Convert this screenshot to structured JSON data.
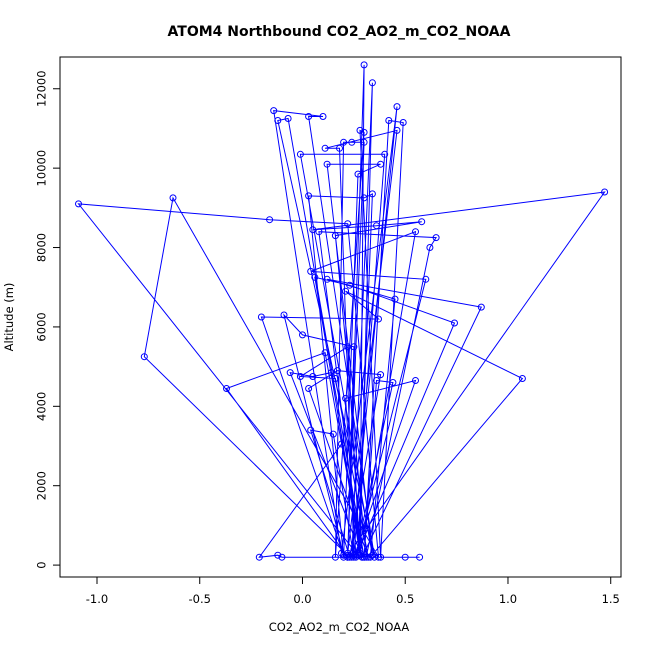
{
  "chart_data": {
    "type": "line",
    "title": "ATOM4 Northbound CO2_AO2_m_CO2_NOAA",
    "xlabel": "CO2_AO2_m_CO2_NOAA",
    "ylabel": "Altitude (m)",
    "xlim": [
      -1.18,
      1.55
    ],
    "ylim": [
      -300,
      12800
    ],
    "x_ticks": [
      -1.0,
      -0.5,
      0.0,
      0.5,
      1.0,
      1.5
    ],
    "x_tick_labels": [
      "-1.0",
      "-0.5",
      "0.0",
      "0.5",
      "1.0",
      "1.5"
    ],
    "y_ticks": [
      0,
      2000,
      4000,
      6000,
      8000,
      10000,
      12000
    ],
    "y_tick_labels": [
      "0",
      "2000",
      "4000",
      "6000",
      "8000",
      "10000",
      "12000"
    ],
    "grid": false,
    "legend": "none",
    "marker": "open-circle",
    "color": "#0000ff",
    "series": [
      {
        "points": [
          [
            0.22,
            200
          ],
          [
            0.3,
            12600
          ],
          [
            0.28,
            300
          ],
          [
            0.34,
            12150
          ],
          [
            0.24,
            200
          ],
          [
            0.46,
            11550
          ],
          [
            0.19,
            300
          ],
          [
            -0.14,
            11450
          ],
          [
            0.1,
            11300
          ],
          [
            0.03,
            11300
          ],
          [
            0.35,
            200
          ],
          [
            -0.12,
            11200
          ],
          [
            -0.07,
            11250
          ],
          [
            0.3,
            200
          ],
          [
            0.42,
            11200
          ],
          [
            0.49,
            11150
          ],
          [
            0.38,
            200
          ],
          [
            0.28,
            10950
          ],
          [
            0.3,
            10900
          ],
          [
            0.16,
            200
          ],
          [
            0.2,
            10650
          ],
          [
            0.24,
            10650
          ],
          [
            0.3,
            10650
          ],
          [
            0.22,
            300
          ],
          [
            0.46,
            10950
          ],
          [
            0.11,
            10500
          ],
          [
            0.18,
            10500
          ],
          [
            0.25,
            250
          ],
          [
            0.4,
            10350
          ],
          [
            -0.01,
            10350
          ],
          [
            0.34,
            250
          ],
          [
            0.12,
            10100
          ],
          [
            0.38,
            10100
          ],
          [
            0.27,
            9850
          ],
          [
            0.2,
            200
          ],
          [
            0.03,
            9300
          ],
          [
            0.3,
            9250
          ],
          [
            0.34,
            9350
          ],
          [
            0.27,
            250
          ],
          [
            -1.09,
            9100
          ],
          [
            -0.16,
            8700
          ],
          [
            0.22,
            8600
          ],
          [
            0.37,
            200
          ],
          [
            -0.63,
            9250
          ],
          [
            -0.77,
            5250
          ],
          [
            0.22,
            250
          ],
          [
            1.47,
            9400
          ],
          [
            0.05,
            8450
          ],
          [
            0.36,
            8550
          ],
          [
            0.58,
            8650
          ],
          [
            0.16,
            8300
          ],
          [
            0.31,
            200
          ],
          [
            0.62,
            8000
          ],
          [
            0.65,
            8250
          ],
          [
            0.08,
            8400
          ],
          [
            0.28,
            250
          ],
          [
            0.55,
            8400
          ],
          [
            0.04,
            7400
          ],
          [
            0.6,
            7200
          ],
          [
            0.26,
            200
          ],
          [
            0.74,
            6100
          ],
          [
            0.23,
            7050
          ],
          [
            0.06,
            7250
          ],
          [
            0.29,
            200
          ],
          [
            0.87,
            6500
          ],
          [
            0.12,
            7200
          ],
          [
            0.45,
            6700
          ],
          [
            0.33,
            200
          ],
          [
            1.07,
            4700
          ],
          [
            0.21,
            6900
          ],
          [
            0.37,
            6200
          ],
          [
            -0.2,
            6250
          ],
          [
            0.2,
            250
          ],
          [
            -0.09,
            6300
          ],
          [
            0.0,
            5800
          ],
          [
            0.25,
            5500
          ],
          [
            0.22,
            200
          ],
          [
            -0.37,
            4450
          ],
          [
            0.11,
            5350
          ],
          [
            0.29,
            200
          ],
          [
            -0.06,
            4850
          ],
          [
            0.05,
            4750
          ],
          [
            0.14,
            4850
          ],
          [
            0.28,
            250
          ],
          [
            0.22,
            5500
          ],
          [
            -0.01,
            4750
          ],
          [
            0.16,
            4700
          ],
          [
            0.32,
            200
          ],
          [
            0.03,
            4450
          ],
          [
            0.17,
            4900
          ],
          [
            0.38,
            4800
          ],
          [
            0.23,
            200
          ],
          [
            0.04,
            3400
          ],
          [
            0.15,
            3300
          ],
          [
            0.25,
            200
          ],
          [
            0.55,
            4650
          ],
          [
            0.21,
            4200
          ],
          [
            0.26,
            250
          ],
          [
            0.44,
            4600
          ],
          [
            0.36,
            4650
          ],
          [
            0.3,
            200
          ],
          [
            0.19,
            3050
          ],
          [
            -0.21,
            200
          ],
          [
            -0.12,
            250
          ],
          [
            -0.1,
            200
          ],
          [
            0.5,
            200
          ],
          [
            0.57,
            200
          ]
        ]
      }
    ]
  }
}
